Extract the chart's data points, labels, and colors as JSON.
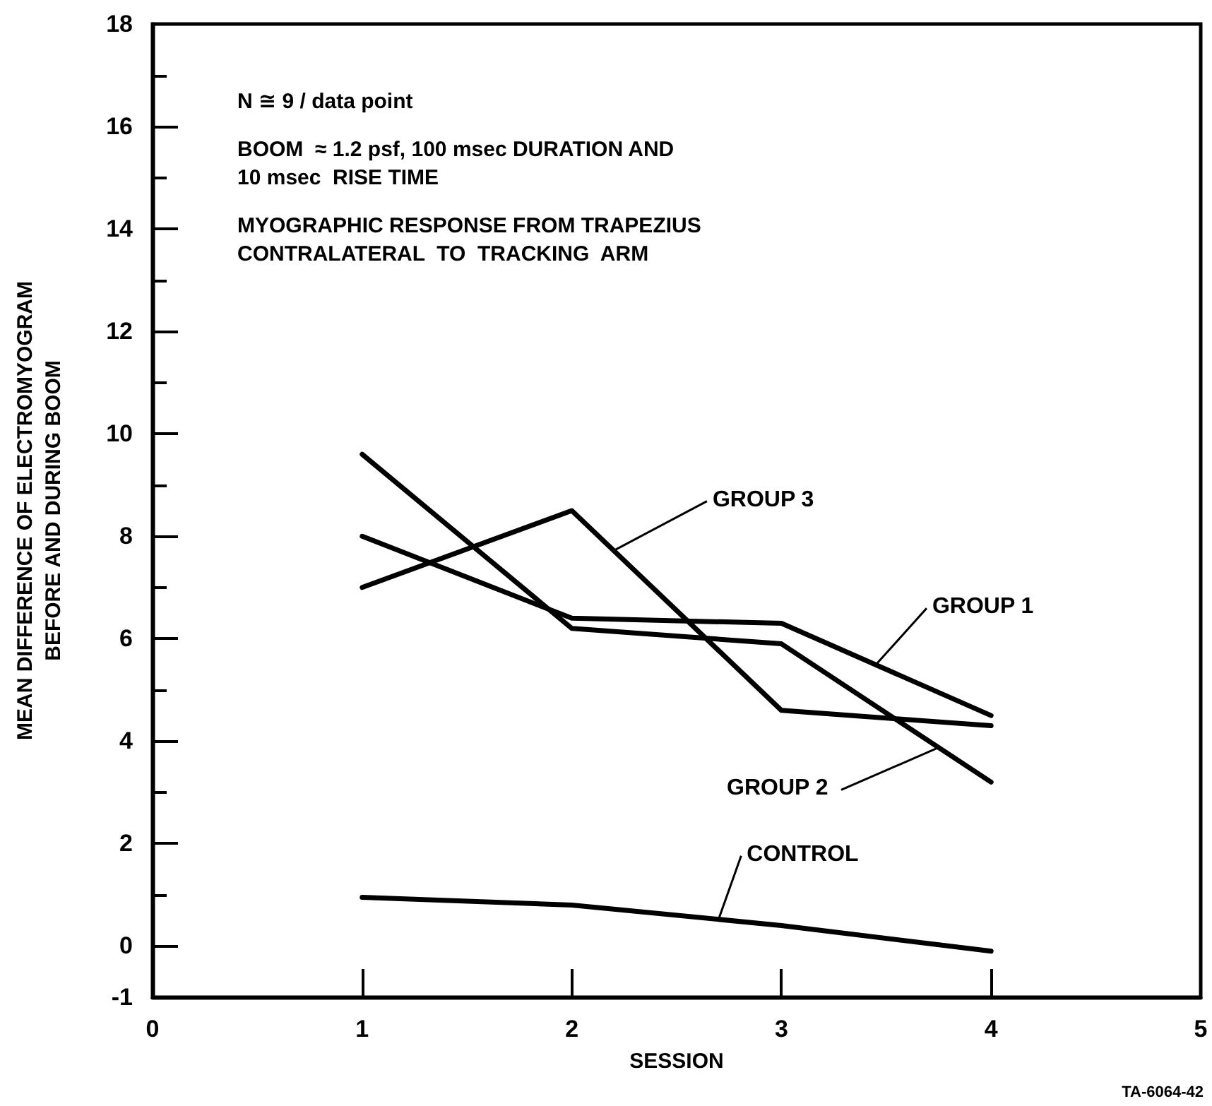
{
  "chart_data": {
    "type": "line",
    "xlabel": "SESSION",
    "ylabel": "MEAN DIFFERENCE OF ELECTROMYOGRAM\nBEFORE AND DURING BOOM",
    "x": [
      1,
      2,
      3,
      4
    ],
    "series": [
      {
        "name": "GROUP 1",
        "color": "#000000",
        "values": [
          8.0,
          6.4,
          6.3,
          4.5
        ]
      },
      {
        "name": "GROUP 2",
        "color": "#000000",
        "values": [
          9.6,
          6.2,
          5.9,
          3.2
        ]
      },
      {
        "name": "GROUP 3",
        "color": "#000000",
        "values": [
          7.0,
          8.5,
          4.6,
          4.3
        ]
      },
      {
        "name": "CONTROL",
        "color": "#000000",
        "values": [
          0.95,
          0.8,
          0.4,
          -0.1
        ]
      }
    ],
    "xlim": [
      0,
      5
    ],
    "xticks": [
      0,
      1,
      2,
      3,
      4,
      5
    ],
    "ylim": [
      -1,
      18
    ],
    "yticks": [
      -1,
      0,
      {
        "value": 1,
        "label": null
      },
      2,
      {
        "value": 3,
        "label": null
      },
      4,
      {
        "value": 5,
        "label": null
      },
      6,
      {
        "value": 7,
        "label": null
      },
      8,
      {
        "value": 9,
        "label": null
      },
      10,
      {
        "value": 11,
        "label": null
      },
      12,
      {
        "value": 13,
        "label": null
      },
      14,
      {
        "value": 15,
        "label": null
      },
      16,
      {
        "value": 17,
        "label": null
      },
      18
    ],
    "annotations": [
      "N ≅ 9 / data point",
      "BOOM  ≈ 1.2 psf, 100 msec DURATION AND\n10 msec  RISE TIME",
      "MYOGRAPHIC RESPONSE FROM TRAPEZIUS\nCONTRALATERAL  TO  TRACKING  ARM",
      "TA-6064-42"
    ],
    "grid": false,
    "legend": false,
    "marker": "none",
    "line_style": "solid"
  }
}
